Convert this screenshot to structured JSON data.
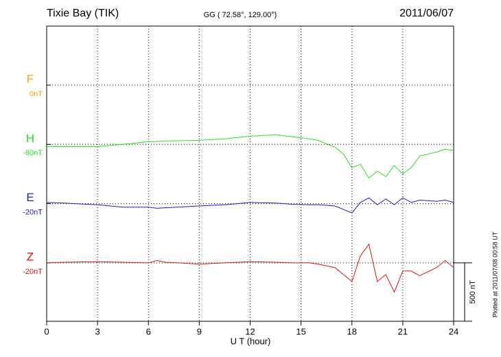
{
  "chart_data": {
    "type": "line",
    "title": "Tixie Bay (TIK)",
    "subtitle": "GG ( 72.58°, 129.00°)",
    "date": "2011/06/07",
    "xlabel": "U T (hour)",
    "footnote": "Plotted at 2011/07/08 00:58 UT",
    "xlim": [
      0,
      24
    ],
    "xticks": [
      0,
      3,
      6,
      9,
      12,
      15,
      18,
      21,
      24
    ],
    "grid": true,
    "scale_bar": {
      "value": 500,
      "label": "500 nT"
    },
    "x": [
      0,
      1,
      3,
      4.5,
      6,
      6.5,
      7,
      9,
      10.5,
      12,
      13.5,
      14.5,
      15.5,
      16,
      17,
      17.5,
      18,
      18.5,
      19,
      19.5,
      20,
      20.5,
      21,
      21.5,
      22,
      23,
      23.5,
      24
    ],
    "series": [
      {
        "name": "F",
        "color": "#f5a800",
        "baseline": {
          "value": 0,
          "label": "0nT"
        },
        "values": [
          null,
          null,
          null,
          null,
          null,
          null,
          null,
          null,
          null,
          null,
          null,
          null,
          null,
          null,
          null,
          null,
          null,
          null,
          null,
          null,
          null,
          null,
          null,
          null,
          null,
          null,
          null,
          null
        ]
      },
      {
        "name": "H",
        "color": "#22e022",
        "baseline": {
          "value": -80,
          "label": "-80nT"
        },
        "values": [
          -98,
          -98,
          -98,
          -80,
          -57,
          -55,
          -51,
          -45,
          -33,
          -10,
          2,
          -15,
          -33,
          -45,
          -104,
          -162,
          -280,
          -250,
          -368,
          -309,
          -356,
          -262,
          -333,
          -280,
          -180,
          -145,
          -121,
          -133
        ]
      },
      {
        "name": "E",
        "color": "#1a1acc",
        "baseline": {
          "value": -20,
          "label": "-20nT"
        },
        "values": [
          -10,
          -15,
          -30,
          -50,
          -50,
          -60,
          -55,
          -40,
          -30,
          -10,
          -15,
          -25,
          -30,
          -30,
          -40,
          -70,
          -100,
          -10,
          30,
          -30,
          20,
          -30,
          30,
          -10,
          10,
          0,
          10,
          -10
        ]
      },
      {
        "name": "Z",
        "color": "#dd1111",
        "baseline": {
          "value": -20,
          "label": "-20nT"
        },
        "values": [
          -20,
          -15,
          -10,
          -15,
          -20,
          0,
          -15,
          -30,
          -20,
          -10,
          -15,
          -20,
          -20,
          -30,
          -60,
          -120,
          -180,
          40,
          140,
          -180,
          -120,
          -270,
          -90,
          -90,
          -130,
          -60,
          0,
          -60
        ]
      }
    ]
  }
}
